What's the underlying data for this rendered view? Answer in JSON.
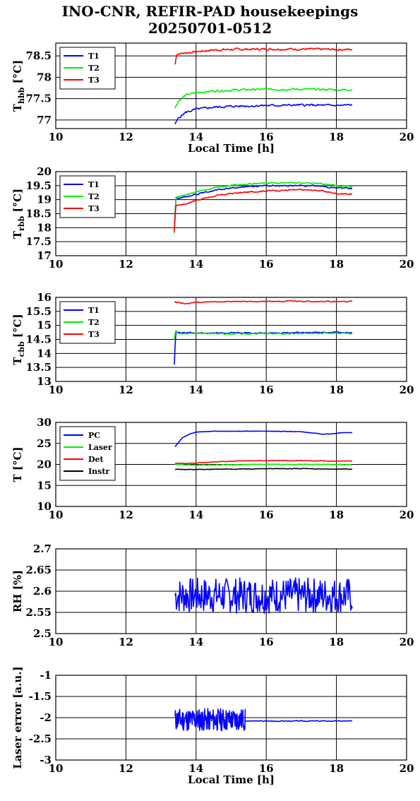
{
  "title_line1": "INO-CNR, REFIR-PAD housekeepings",
  "title_line2": "20250701-0512",
  "chart_data": [
    {
      "type": "line",
      "ylabel": "T_hbb [°C]",
      "ylabel_main": "T",
      "ylabel_sub": "hbb",
      "ylabel_unit": " [°C]",
      "xlabel": "Local Time [h]",
      "xlim": [
        10,
        20
      ],
      "ylim": [
        76.8,
        78.8
      ],
      "xticks": [
        10,
        12,
        14,
        16,
        18,
        20
      ],
      "yticks": [
        77,
        77.5,
        78,
        78.5
      ],
      "ytick_labels": [
        "77",
        "77.5",
        "78",
        "78.5"
      ],
      "grid": true,
      "legend": "top-left",
      "series": [
        {
          "name": "T1",
          "color": "#0000ff",
          "x": [
            13.4,
            13.5,
            13.7,
            14.0,
            14.5,
            15.0,
            16.0,
            17.0,
            18.0,
            18.45
          ],
          "y": [
            76.9,
            77.05,
            77.18,
            77.25,
            77.3,
            77.32,
            77.34,
            77.35,
            77.34,
            77.35
          ],
          "noise": 0.02
        },
        {
          "name": "T2",
          "color": "#00ee00",
          "x": [
            13.4,
            13.5,
            13.7,
            14.0,
            14.5,
            15.0,
            16.0,
            17.0,
            18.0,
            18.45
          ],
          "y": [
            77.28,
            77.45,
            77.58,
            77.64,
            77.68,
            77.7,
            77.72,
            77.72,
            77.71,
            77.71
          ],
          "noise": 0.02
        },
        {
          "name": "T3",
          "color": "#ff0000",
          "x": [
            13.4,
            13.45,
            13.6,
            14.0,
            14.5,
            15.0,
            16.0,
            17.0,
            18.0,
            18.45
          ],
          "y": [
            78.3,
            78.55,
            78.56,
            78.6,
            78.64,
            78.65,
            78.66,
            78.66,
            78.65,
            78.65
          ],
          "noise": 0.02
        }
      ]
    },
    {
      "type": "line",
      "ylabel": "T_rbb [°C]",
      "ylabel_main": "T",
      "ylabel_sub": "rbb",
      "ylabel_unit": " [°C]",
      "xlim": [
        10,
        20
      ],
      "ylim": [
        17,
        20
      ],
      "xticks": [
        10,
        12,
        14,
        16,
        18,
        20
      ],
      "yticks": [
        17,
        17.5,
        18,
        18.5,
        19,
        19.5,
        20
      ],
      "ytick_labels": [
        "17",
        "17.5",
        "18",
        "18.5",
        "19",
        "19.5",
        "20"
      ],
      "grid": true,
      "legend": "top-left",
      "series": [
        {
          "name": "T1",
          "color": "#0000ff",
          "x": [
            13.38,
            13.42,
            13.45,
            13.7,
            14.0,
            14.5,
            15.0,
            16.0,
            17.0,
            17.5,
            18.0,
            18.45
          ],
          "y": [
            17.9,
            19.05,
            19.05,
            19.1,
            19.2,
            19.32,
            19.42,
            19.5,
            19.5,
            19.49,
            19.42,
            19.4
          ],
          "noise": 0.02
        },
        {
          "name": "T2",
          "color": "#00ee00",
          "x": [
            13.38,
            13.42,
            13.45,
            13.7,
            14.0,
            14.5,
            15.0,
            16.0,
            17.0,
            17.5,
            18.0,
            18.45
          ],
          "y": [
            17.8,
            19.1,
            19.1,
            19.15,
            19.28,
            19.42,
            19.52,
            19.6,
            19.6,
            19.58,
            19.5,
            19.45
          ],
          "noise": 0.02
        },
        {
          "name": "T3",
          "color": "#ff0000",
          "x": [
            13.38,
            13.42,
            13.45,
            13.7,
            14.0,
            14.5,
            15.0,
            16.0,
            17.0,
            17.5,
            18.0,
            18.45
          ],
          "y": [
            17.85,
            18.8,
            18.8,
            18.85,
            18.98,
            19.12,
            19.22,
            19.32,
            19.35,
            19.33,
            19.22,
            19.2
          ],
          "noise": 0.02
        }
      ]
    },
    {
      "type": "line",
      "ylabel": "T_cbb [°C]",
      "ylabel_main": "T",
      "ylabel_sub": "cbb",
      "ylabel_unit": " [°C]",
      "xlim": [
        10,
        20
      ],
      "ylim": [
        13,
        16
      ],
      "xticks": [
        10,
        12,
        14,
        16,
        18,
        20
      ],
      "yticks": [
        13,
        13.5,
        14,
        14.5,
        15,
        15.5,
        16
      ],
      "ytick_labels": [
        "13",
        "13.5",
        "14",
        "14.5",
        "15",
        "15.5",
        "16"
      ],
      "grid": true,
      "legend": "top-left",
      "series": [
        {
          "name": "T1",
          "color": "#0000ff",
          "x": [
            13.38,
            13.42,
            13.48,
            14.0,
            15.0,
            16.0,
            17.0,
            18.0,
            18.45
          ],
          "y": [
            13.6,
            14.8,
            14.75,
            14.73,
            14.73,
            14.73,
            14.74,
            14.75,
            14.74
          ],
          "noise": 0.015
        },
        {
          "name": "T2",
          "color": "#00ee00",
          "x": [
            13.38,
            13.42,
            13.48,
            14.0,
            15.0,
            16.0,
            17.0,
            18.0,
            18.45
          ],
          "y": [
            14.5,
            14.85,
            14.72,
            14.71,
            14.7,
            14.71,
            14.71,
            14.72,
            14.71
          ],
          "noise": 0.02
        },
        {
          "name": "T3",
          "color": "#ff0000",
          "x": [
            13.38,
            13.5,
            13.7,
            14.0,
            15.0,
            16.0,
            17.0,
            18.0,
            18.45
          ],
          "y": [
            15.85,
            15.82,
            15.78,
            15.82,
            15.85,
            15.86,
            15.86,
            15.85,
            15.85
          ],
          "noise": 0.015
        }
      ]
    },
    {
      "type": "line",
      "ylabel": "T [°C]",
      "ylabel_main": "T",
      "ylabel_sub": "",
      "ylabel_unit": " [°C]",
      "xlim": [
        10,
        20
      ],
      "ylim": [
        10,
        30
      ],
      "xticks": [
        10,
        12,
        14,
        16,
        18,
        20
      ],
      "yticks": [
        10,
        15,
        20,
        25,
        30
      ],
      "ytick_labels": [
        "10",
        "15",
        "20",
        "25",
        "30"
      ],
      "grid": true,
      "legend": "top-left",
      "series": [
        {
          "name": "PC",
          "color": "#0000ff",
          "x": [
            13.4,
            13.6,
            13.8,
            14.0,
            14.5,
            15.0,
            16.0,
            17.0,
            17.3,
            17.6,
            17.9,
            18.2,
            18.45
          ],
          "y": [
            24.2,
            26.3,
            27.2,
            27.7,
            27.9,
            27.9,
            27.9,
            27.8,
            27.5,
            27.2,
            27.3,
            27.6,
            27.6
          ],
          "noise": 0.03
        },
        {
          "name": "Laser",
          "color": "#00ee00",
          "x": [
            13.4,
            14.0,
            15.0,
            16.0,
            17.0,
            18.0,
            18.45
          ],
          "y": [
            20.0,
            19.8,
            19.9,
            20.0,
            20.0,
            20.0,
            19.9
          ],
          "noise": 0.06
        },
        {
          "name": "Det",
          "color": "#ff0000",
          "x": [
            13.4,
            13.8,
            14.5,
            15.5,
            16.0,
            17.0,
            18.0,
            18.45
          ],
          "y": [
            20.2,
            20.2,
            20.6,
            20.9,
            20.9,
            20.9,
            20.8,
            20.8
          ],
          "noise": 0.06
        },
        {
          "name": "Instr",
          "color": "#000000",
          "x": [
            13.4,
            14.0,
            15.0,
            16.0,
            17.0,
            18.0,
            18.45
          ],
          "y": [
            18.8,
            18.8,
            18.9,
            19.0,
            19.0,
            18.9,
            18.9
          ],
          "noise": 0.06
        }
      ]
    },
    {
      "type": "line",
      "ylabel": "RH [%]",
      "ylabel_main": "RH",
      "ylabel_sub": "",
      "ylabel_unit": " [%]",
      "xlim": [
        10,
        20
      ],
      "ylim": [
        2.5,
        2.7
      ],
      "xticks": [
        10,
        12,
        14,
        16,
        18,
        20
      ],
      "yticks": [
        2.5,
        2.55,
        2.6,
        2.65,
        2.7
      ],
      "ytick_labels": [
        "2.5",
        "2.55",
        "2.6",
        "2.65",
        "2.7"
      ],
      "grid": true,
      "legend": "none",
      "series": [
        {
          "name": "",
          "color": "#0000ff",
          "x": [
            13.4,
            18.45
          ],
          "y": [
            2.59,
            2.59
          ],
          "noise": 0.025,
          "range": [
            2.52,
            2.66
          ],
          "points": 260,
          "seed": 7
        }
      ]
    },
    {
      "type": "line",
      "ylabel": "Laser error [a.u.]",
      "ylabel_main": "Laser error",
      "ylabel_sub": "",
      "ylabel_unit": " [a.u.]",
      "xlabel": "Local Time [h]",
      "xlim": [
        10,
        20
      ],
      "ylim": [
        -3,
        -1
      ],
      "xticks": [
        10,
        12,
        14,
        16,
        18,
        20
      ],
      "yticks": [
        -3,
        -2.5,
        -2,
        -1.5,
        -1
      ],
      "ytick_labels": [
        "-3",
        "-2.5",
        "-2",
        "-1.5",
        "-1"
      ],
      "grid": true,
      "legend": "none",
      "series": [
        {
          "name": "",
          "color": "#0000ff",
          "x": [
            13.4,
            15.4
          ],
          "y": [
            -2.05,
            -2.05
          ],
          "noise": 0.25,
          "range": [
            -2.5,
            -1.6
          ],
          "points": 180,
          "seed": 11
        },
        {
          "name": "",
          "color": "#0000ff",
          "x": [
            15.4,
            18.45
          ],
          "y": [
            -2.08,
            -2.08
          ],
          "noise": 0.008,
          "points": 120,
          "seed": 3
        }
      ]
    }
  ]
}
